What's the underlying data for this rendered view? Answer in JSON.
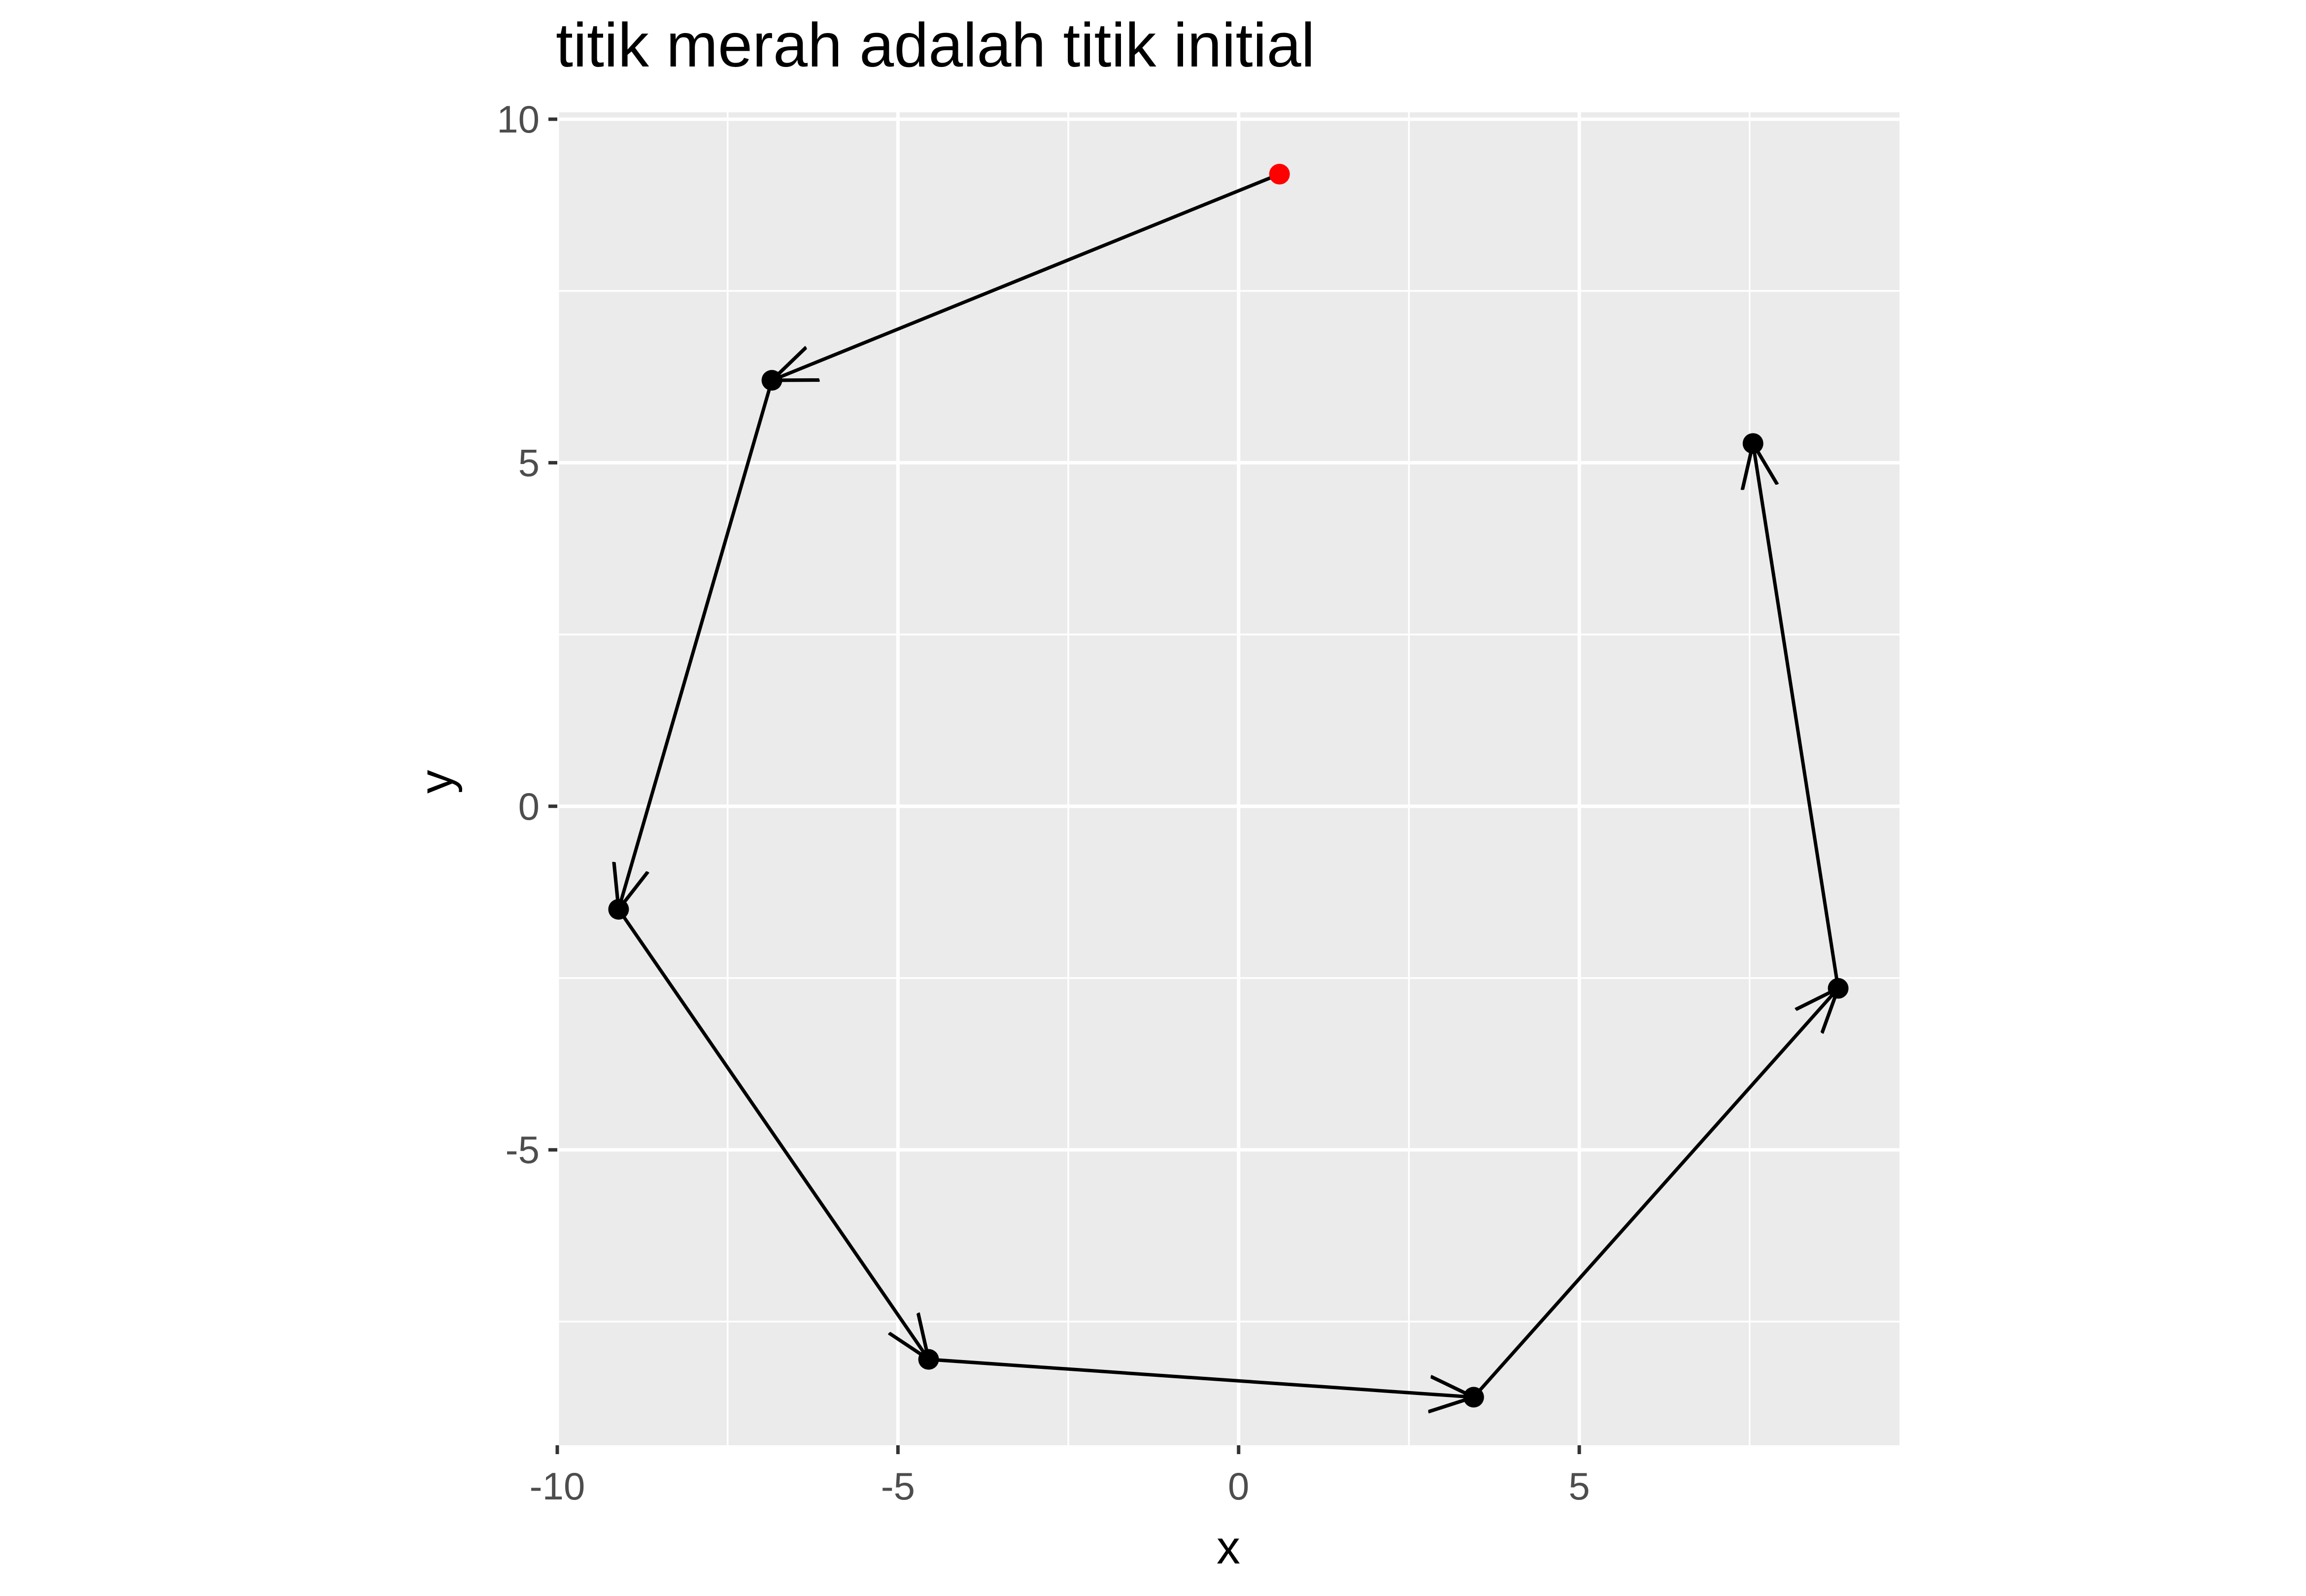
{
  "chart_data": {
    "type": "scatter",
    "title": "titik merah adalah titik initial",
    "xlabel": "x",
    "ylabel": "y",
    "xlim": [
      -10,
      9.7
    ],
    "ylim": [
      -9.3,
      10.1
    ],
    "x_ticks": [
      -10,
      -5,
      0,
      5
    ],
    "x_tick_labels": [
      "-10",
      "-5",
      "0",
      "5"
    ],
    "y_ticks": [
      -5,
      0,
      5,
      10
    ],
    "y_tick_labels": [
      "-5",
      "0",
      "5",
      "10"
    ],
    "grid": true,
    "panel_background": "#ebebeb",
    "grid_color": "#ffffff",
    "line_color": "#000000",
    "initial_point_color": "#ff0000",
    "point_color": "#000000",
    "series": [
      {
        "x": [
          0.6,
          -6.85,
          -9.1,
          -4.55,
          3.45,
          8.8,
          7.55
        ],
        "y": [
          9.2,
          6.2,
          -1.5,
          -8.05,
          -8.6,
          -2.65,
          5.28
        ]
      }
    ],
    "initial_point_index": 0
  }
}
